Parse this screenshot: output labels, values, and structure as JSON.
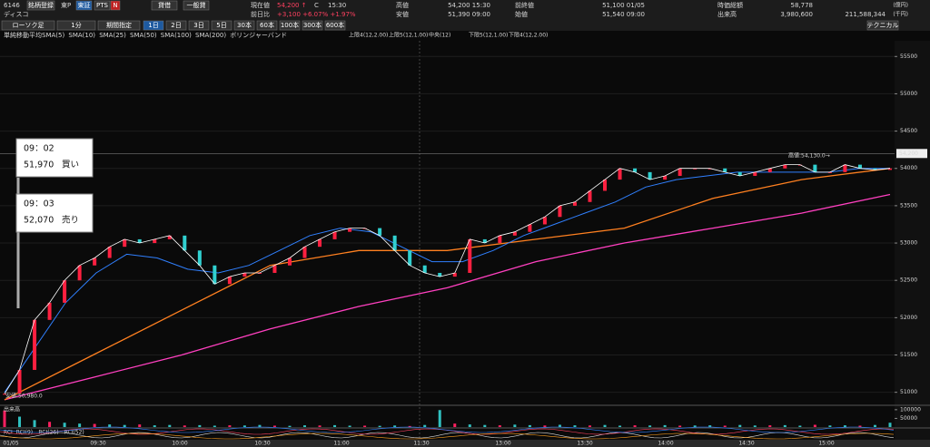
{
  "header": {
    "code": "6146",
    "register": "銘柄登録",
    "market": "東P",
    "exchange": "東証",
    "pts": "PTS",
    "n": "N",
    "margin": "貸借",
    "general": "一般貸",
    "name": "ディスコ",
    "current_label": "現在値",
    "current_value": "54,200 ↑",
    "current_flag": "C",
    "current_time": "15:30",
    "change_label": "前日比",
    "change_value": "+3,100 +6.07% +1.97%",
    "high_label": "高値",
    "high_value": "54,200 15:30",
    "low_label": "安値",
    "low_value": "51,390 09:00",
    "prev_label": "前終値",
    "prev_value": "51,100 01/05",
    "open_label": "始値",
    "open_value": "51,540 09:00",
    "cap_label": "時価総額",
    "cap_value": "58,778",
    "cap_unit": "(億円)",
    "volume_label": "出来高",
    "volume_value": "3,980,600",
    "turnover_value": "211,588,344",
    "turnover_unit": "(千円)"
  },
  "toolbar": {
    "chart_kind": "ローソク足",
    "interval": "1分",
    "period": "期間指定",
    "ranges": [
      "1日",
      "2日",
      "3日",
      "5日",
      "30本",
      "60本",
      "100本",
      "300本",
      "600本"
    ],
    "technical": "テクニカル"
  },
  "legend": {
    "indicator": "単純移動平均",
    "sma": [
      "SMA(5)",
      "SMA(10)",
      "SMA(25)",
      "SMA(50)",
      "SMA(100)",
      "SMA(200)"
    ],
    "sma_colors": [
      "#ffffff",
      "#40ff80",
      "#3080ff",
      "#a040ff",
      "#ff8020",
      "#ff40c0"
    ],
    "bollinger": "ボリンジャーバンド",
    "bands": [
      "上限4(12,2.00)",
      "上限5(12,1.00)",
      "中央(12)",
      "下限5(12,1.00)",
      "下限4(12,2.00)"
    ]
  },
  "chart": {
    "ylim": [
      50850,
      55710
    ],
    "yticks": [
      51000,
      51500,
      52000,
      52500,
      53000,
      53500,
      54000,
      54500,
      55000,
      55500
    ],
    "current_price": {
      "value": 54200,
      "label": "54,200"
    },
    "high_note": "高値:54,130.0→",
    "low_note": "安値:50,980.0",
    "close": [
      50980,
      51300,
      51970,
      52200,
      52500,
      52700,
      52800,
      52950,
      53050,
      53000,
      53050,
      53100,
      52900,
      52700,
      52450,
      52550,
      52600,
      52600,
      52700,
      52800,
      52950,
      53050,
      53150,
      53200,
      53200,
      53100,
      52900,
      52700,
      52600,
      52550,
      52600,
      53050,
      53000,
      53100,
      53150,
      53250,
      53350,
      53500,
      53550,
      53700,
      53850,
      54000,
      53950,
      53850,
      53900,
      54000,
      54000,
      54000,
      53950,
      53900,
      53950,
      54000,
      54050,
      54050,
      53950,
      53950,
      54050,
      54000,
      53980,
      54000
    ],
    "sma25": [
      51000,
      51600,
      52200,
      52600,
      52850,
      52800,
      52650,
      52600,
      52700,
      52900,
      53100,
      53200,
      53150,
      52950,
      52750,
      52750,
      52900,
      53100,
      53250,
      53400,
      53550,
      53750,
      53850,
      53900,
      53950,
      53950,
      53950,
      53950,
      54000,
      54000
    ],
    "sma100": [
      50900,
      51500,
      52100,
      52700,
      52900,
      52900,
      53050,
      53200,
      53600,
      53850,
      54000
    ],
    "sma200": [
      50900,
      51200,
      51500,
      51850,
      52150,
      52400,
      52750,
      53000,
      53200,
      53400,
      53650
    ],
    "volume": [
      95000,
      60000,
      40000,
      30000,
      25000,
      20000,
      18000,
      15000,
      12000,
      15000,
      10000,
      12000,
      9000,
      11000,
      8000,
      10000,
      9000,
      12000,
      8000,
      7000,
      10000,
      9000,
      11000,
      8000,
      8000,
      7000,
      9000,
      6000,
      12000,
      98000,
      20000,
      15000,
      12000,
      10000,
      14000,
      11000,
      9000,
      13000,
      10000,
      9000,
      12000,
      8000,
      10000,
      9000,
      11000,
      8000,
      9000,
      10000,
      8000,
      12000,
      9000,
      10000,
      11000,
      8000,
      13000,
      9000,
      10000,
      8000,
      12000,
      25000
    ],
    "volume_label": "出来高",
    "volume_ylim": [
      0,
      115000
    ],
    "volume_ticks": [
      50000,
      100000
    ],
    "rci_labels": [
      "RCI",
      "RCI(9)",
      "RCI(26)",
      "RCI(52)"
    ],
    "time_labels": [
      "01/05",
      "09:30",
      "10:00",
      "10:30",
      "11:00",
      "11:30",
      "13:00",
      "13:30",
      "14:00",
      "14:30",
      "15:00"
    ],
    "buy": {
      "time": "09：02",
      "price": "51,970",
      "side": "買い"
    },
    "sell": {
      "time": "09：03",
      "price": "52,070",
      "side": "売り"
    }
  }
}
